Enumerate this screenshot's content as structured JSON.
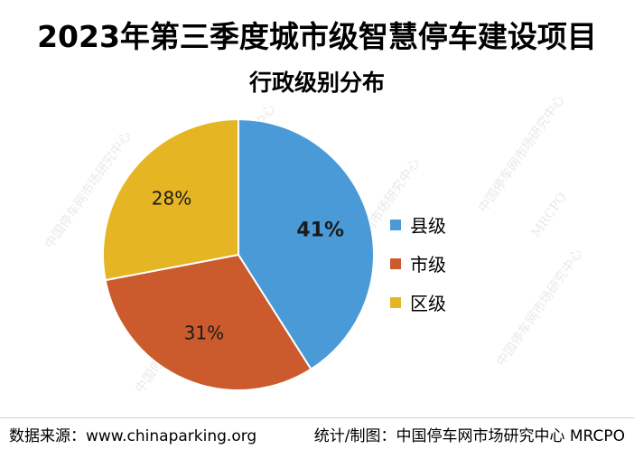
{
  "title": "2023年第三季度城市级智慧停车建设项目",
  "subtitle": "行政级别分布",
  "chart_data": {
    "type": "pie",
    "title": "2023年第三季度城市级智慧停车建设项目",
    "subtitle": "行政级别分布",
    "categories": [
      "县级",
      "市级",
      "区级"
    ],
    "values": [
      41,
      31,
      28
    ],
    "labels": [
      "41%",
      "31%",
      "28%"
    ],
    "colors": [
      "#4a9ad8",
      "#cb5a2d",
      "#e5b524"
    ],
    "legend_position": "right"
  },
  "footer": {
    "source": "数据来源：www.chinaparking.org",
    "credit": "统计/制图：中国停车网市场研究中心 MRCPO"
  },
  "watermark": {
    "cn": "中国停车网市场研究中心",
    "en": "MRCPO"
  }
}
